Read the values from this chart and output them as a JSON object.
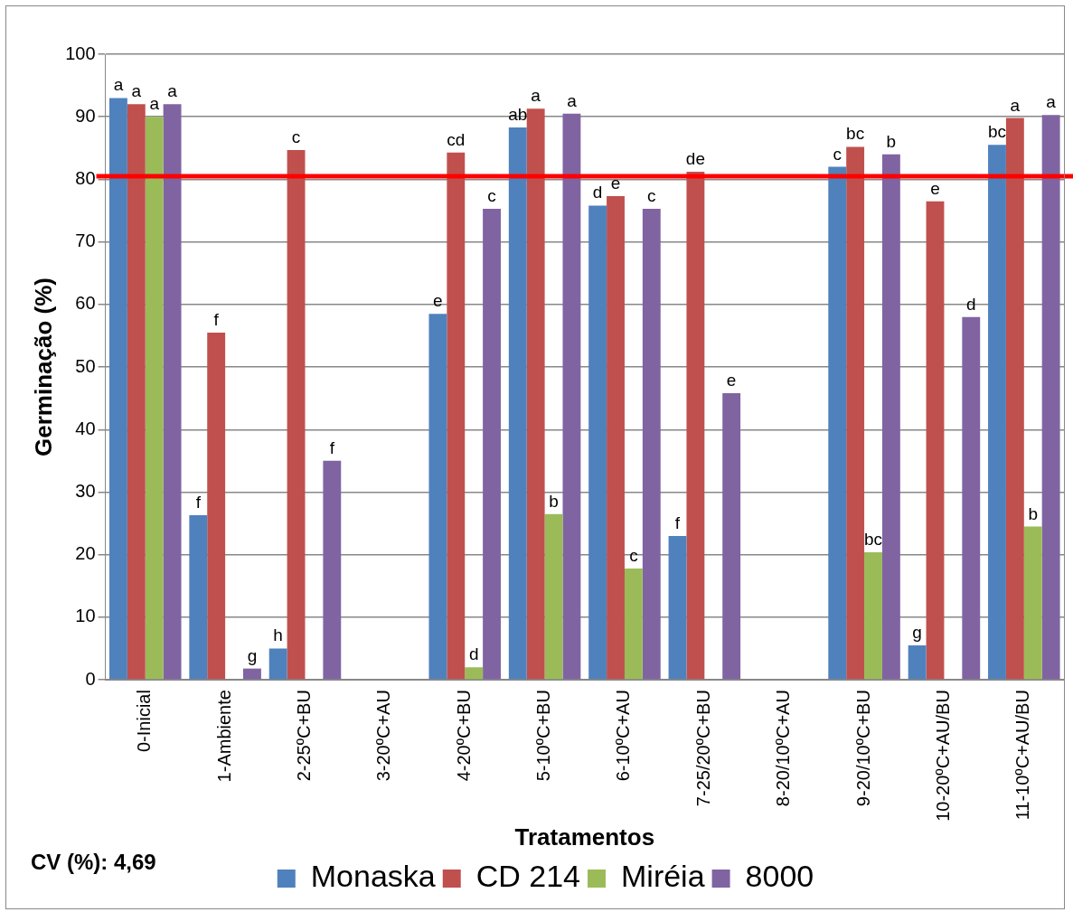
{
  "chart_data": {
    "type": "bar",
    "xlabel": "Tratamentos",
    "ylabel": "Germinação (%)",
    "categories": [
      "0-Inicial",
      "1-Ambiente",
      "2-25ºC+BU",
      "3-20ºC+AU",
      "4-20ºC+BU",
      "5-10ºC+BU",
      "6-10ºC+AU",
      "7-25/20ºC+BU",
      "8-20/10ºC+AU",
      "9-20/10ºC+BU",
      "10-20ºC+AU/BU",
      "11-10ºC+AU/BU"
    ],
    "series": [
      {
        "name": "Monaska",
        "color": "#4f81bd",
        "values": [
          93,
          26.3,
          5,
          0,
          58.5,
          88.3,
          75.8,
          23,
          0,
          82,
          5.5,
          85.5
        ],
        "value_labels": [
          "a",
          "f",
          "h",
          null,
          "e",
          "ab",
          "d",
          "f",
          null,
          "c",
          "g",
          "bc"
        ]
      },
      {
        "name": "CD 214",
        "color": "#c0504d",
        "values": [
          92,
          55.5,
          84.7,
          0,
          84.3,
          91.3,
          77.3,
          81.2,
          0,
          85.2,
          76.5,
          89.8
        ],
        "value_labels": [
          "a",
          "f",
          "c",
          null,
          "cd",
          "a",
          "e",
          "de",
          null,
          "bc",
          "e",
          "a"
        ]
      },
      {
        "name": "Miréia",
        "color": "#9bbb59",
        "values": [
          90,
          0,
          0,
          0,
          2,
          26.5,
          17.8,
          0,
          0,
          20.4,
          0,
          24.5
        ],
        "value_labels": [
          "a",
          null,
          null,
          null,
          "d",
          "b",
          "c",
          null,
          null,
          "bc",
          null,
          "b"
        ]
      },
      {
        "name": "8000",
        "color": "#8064a2",
        "values": [
          92,
          1.8,
          35,
          0,
          75.3,
          90.5,
          75.3,
          45.8,
          0,
          84,
          58,
          90.3
        ],
        "value_labels": [
          "a",
          "g",
          "f",
          null,
          "c",
          "a",
          "c",
          "e",
          null,
          "b",
          "d",
          "a"
        ]
      }
    ],
    "ylim": [
      0,
      100
    ],
    "yticks": [
      0,
      10,
      20,
      30,
      40,
      50,
      60,
      70,
      80,
      90,
      100
    ],
    "grid": "y",
    "legend": "bottom",
    "ref_lines": [
      {
        "axis": "y",
        "value": 80.5,
        "color": "#ff0000"
      }
    ],
    "annotations": [
      "CV (%): 4,69"
    ]
  }
}
